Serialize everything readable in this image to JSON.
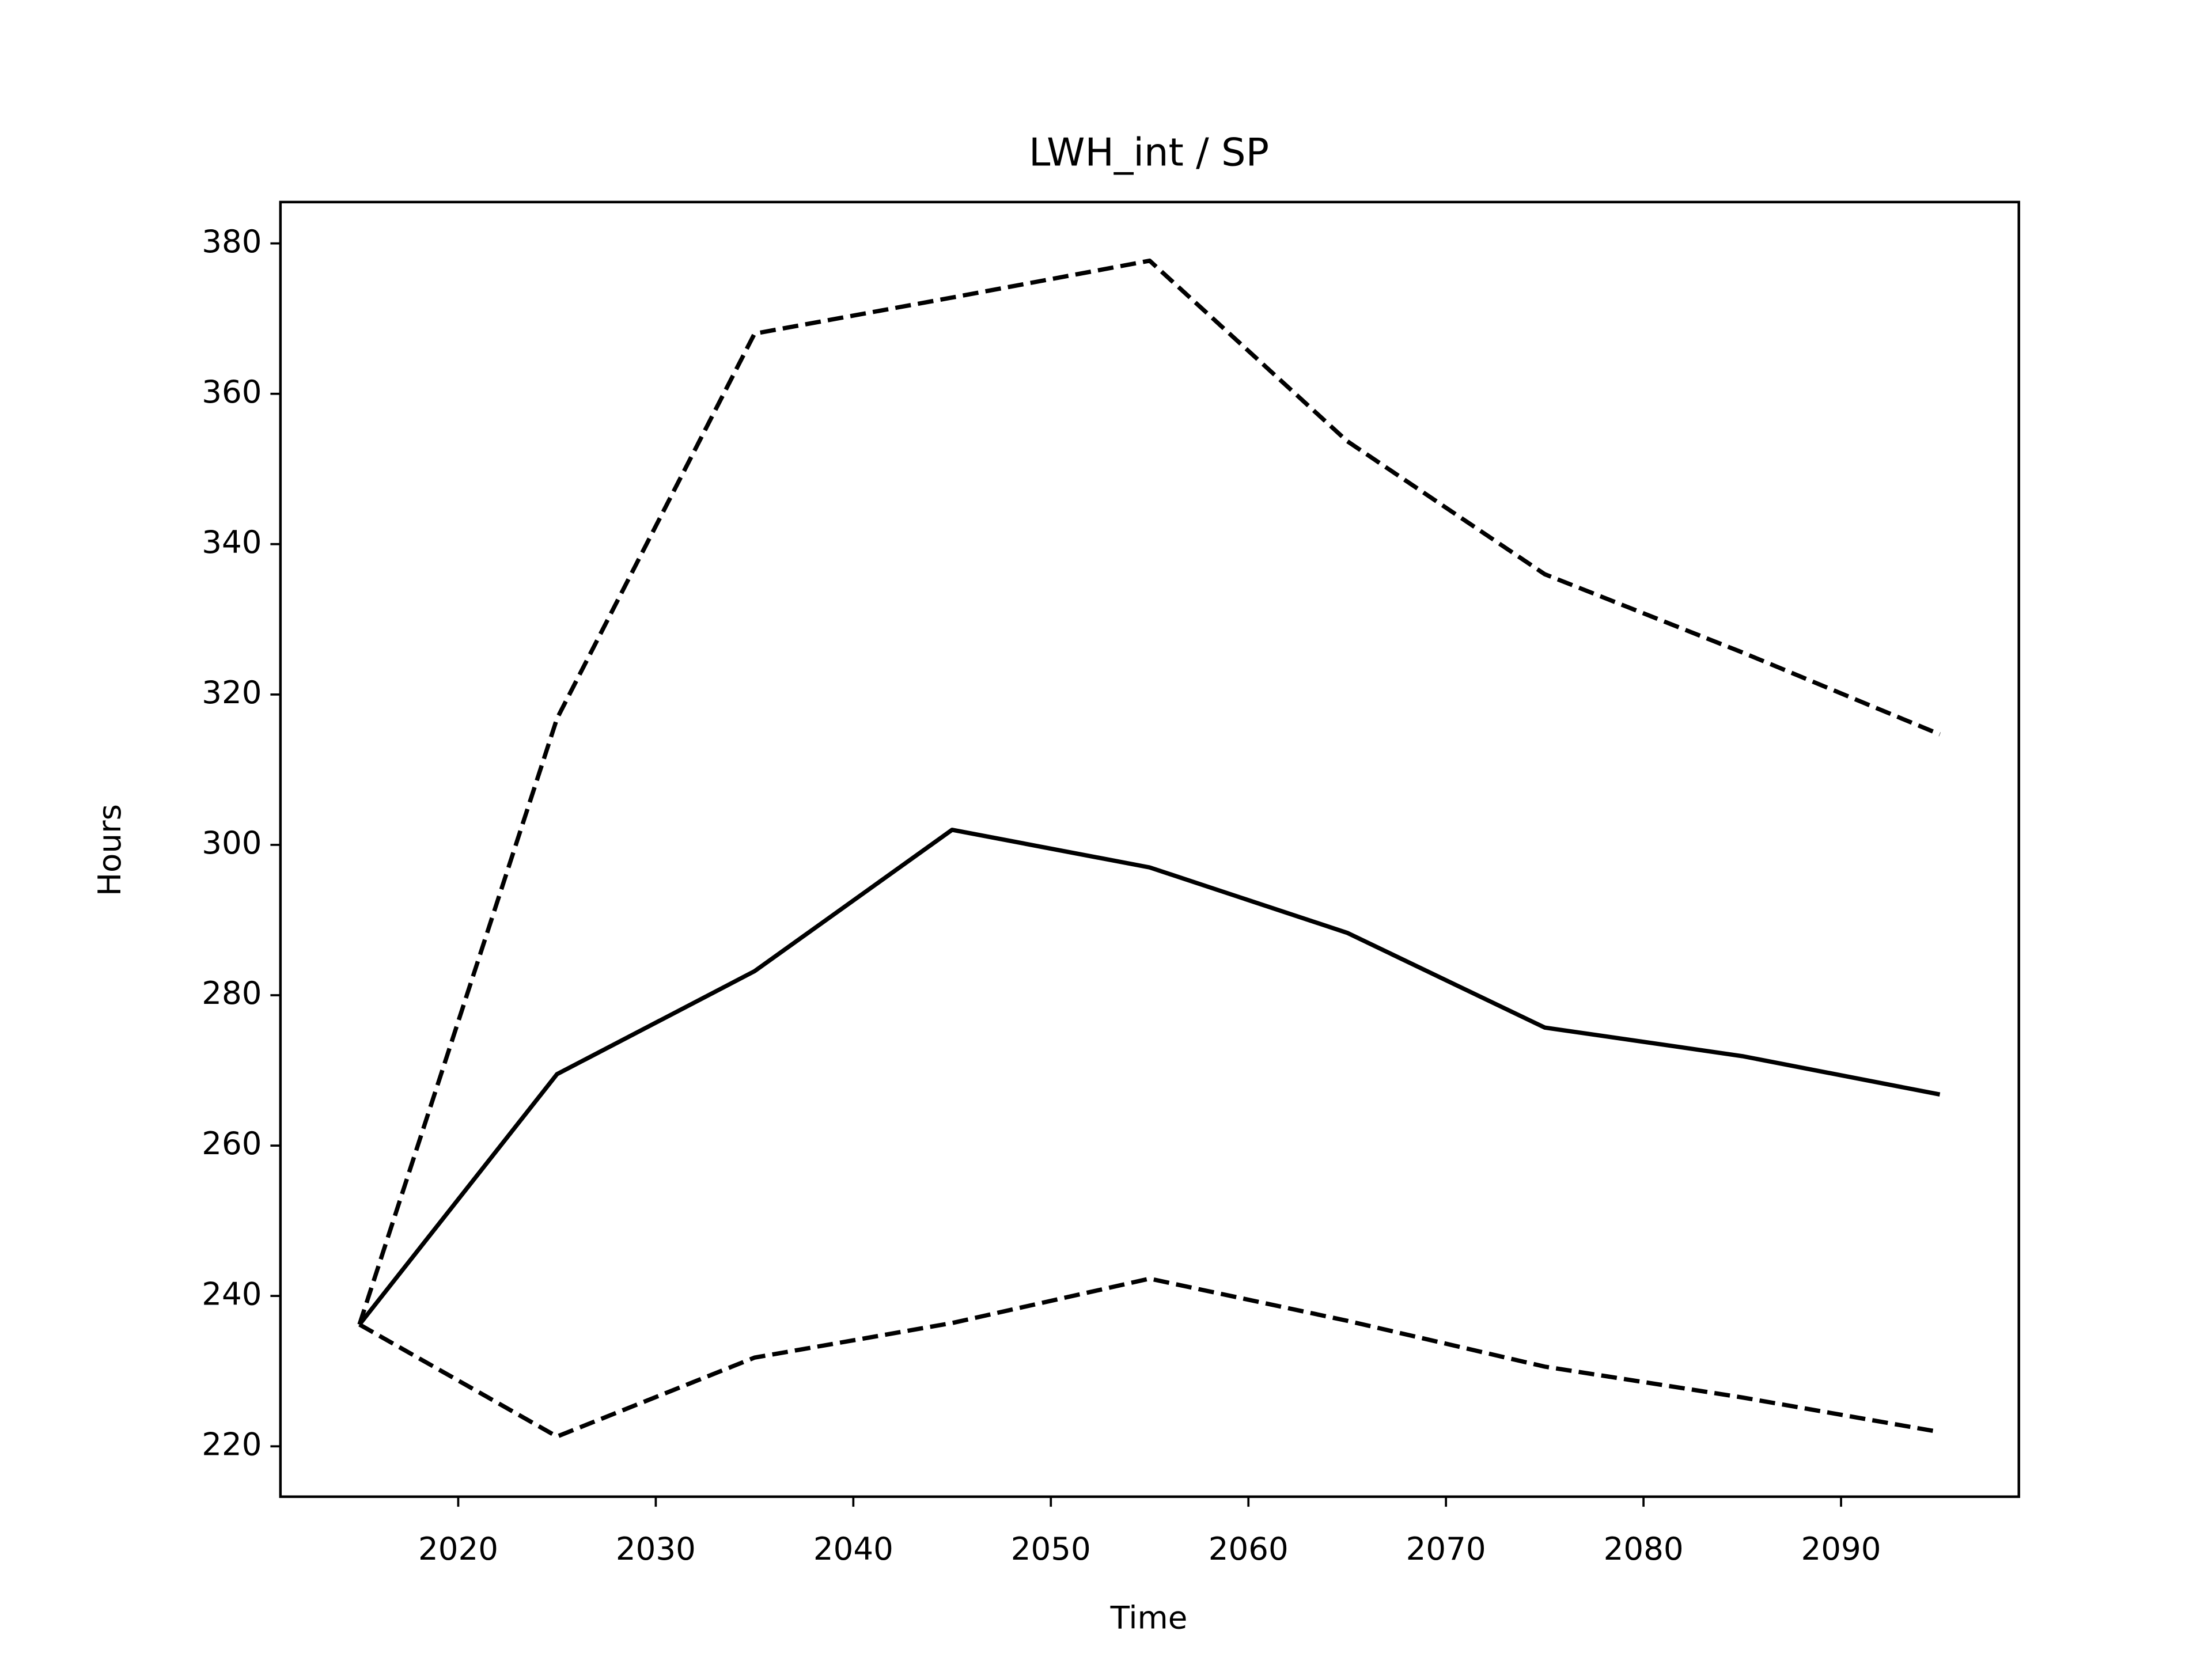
{
  "chart_data": {
    "type": "line",
    "title": "LWH_int / SP",
    "x_label": "Time",
    "y_label": "Hours",
    "x": [
      2015,
      2025,
      2035,
      2045,
      2055,
      2065,
      2075,
      2085,
      2095
    ],
    "series": [
      {
        "color": "#000000",
        "linestyle": "solid",
        "values": [
          236.2,
          269.5,
          283.2,
          302.0,
          297.0,
          288.3,
          275.7,
          271.9,
          266.8
        ]
      },
      {
        "color": "#000000",
        "linestyle": "dashed",
        "values": [
          236.2,
          316.8,
          368.0,
          372.8,
          377.7,
          353.7,
          336.0,
          325.6,
          314.7
        ]
      },
      {
        "color": "#000000",
        "linestyle": "dashed",
        "values": [
          236.2,
          221.3,
          231.8,
          236.4,
          242.3,
          236.7,
          230.6,
          226.5,
          221.9
        ]
      }
    ],
    "xlim": [
      2011,
      2099
    ],
    "ylim": [
      213.3,
      385.5
    ],
    "xticks": [
      2020,
      2030,
      2040,
      2050,
      2060,
      2070,
      2080,
      2090
    ],
    "yticks": [
      220,
      240,
      260,
      280,
      300,
      320,
      340,
      360,
      380
    ],
    "grid": false
  }
}
